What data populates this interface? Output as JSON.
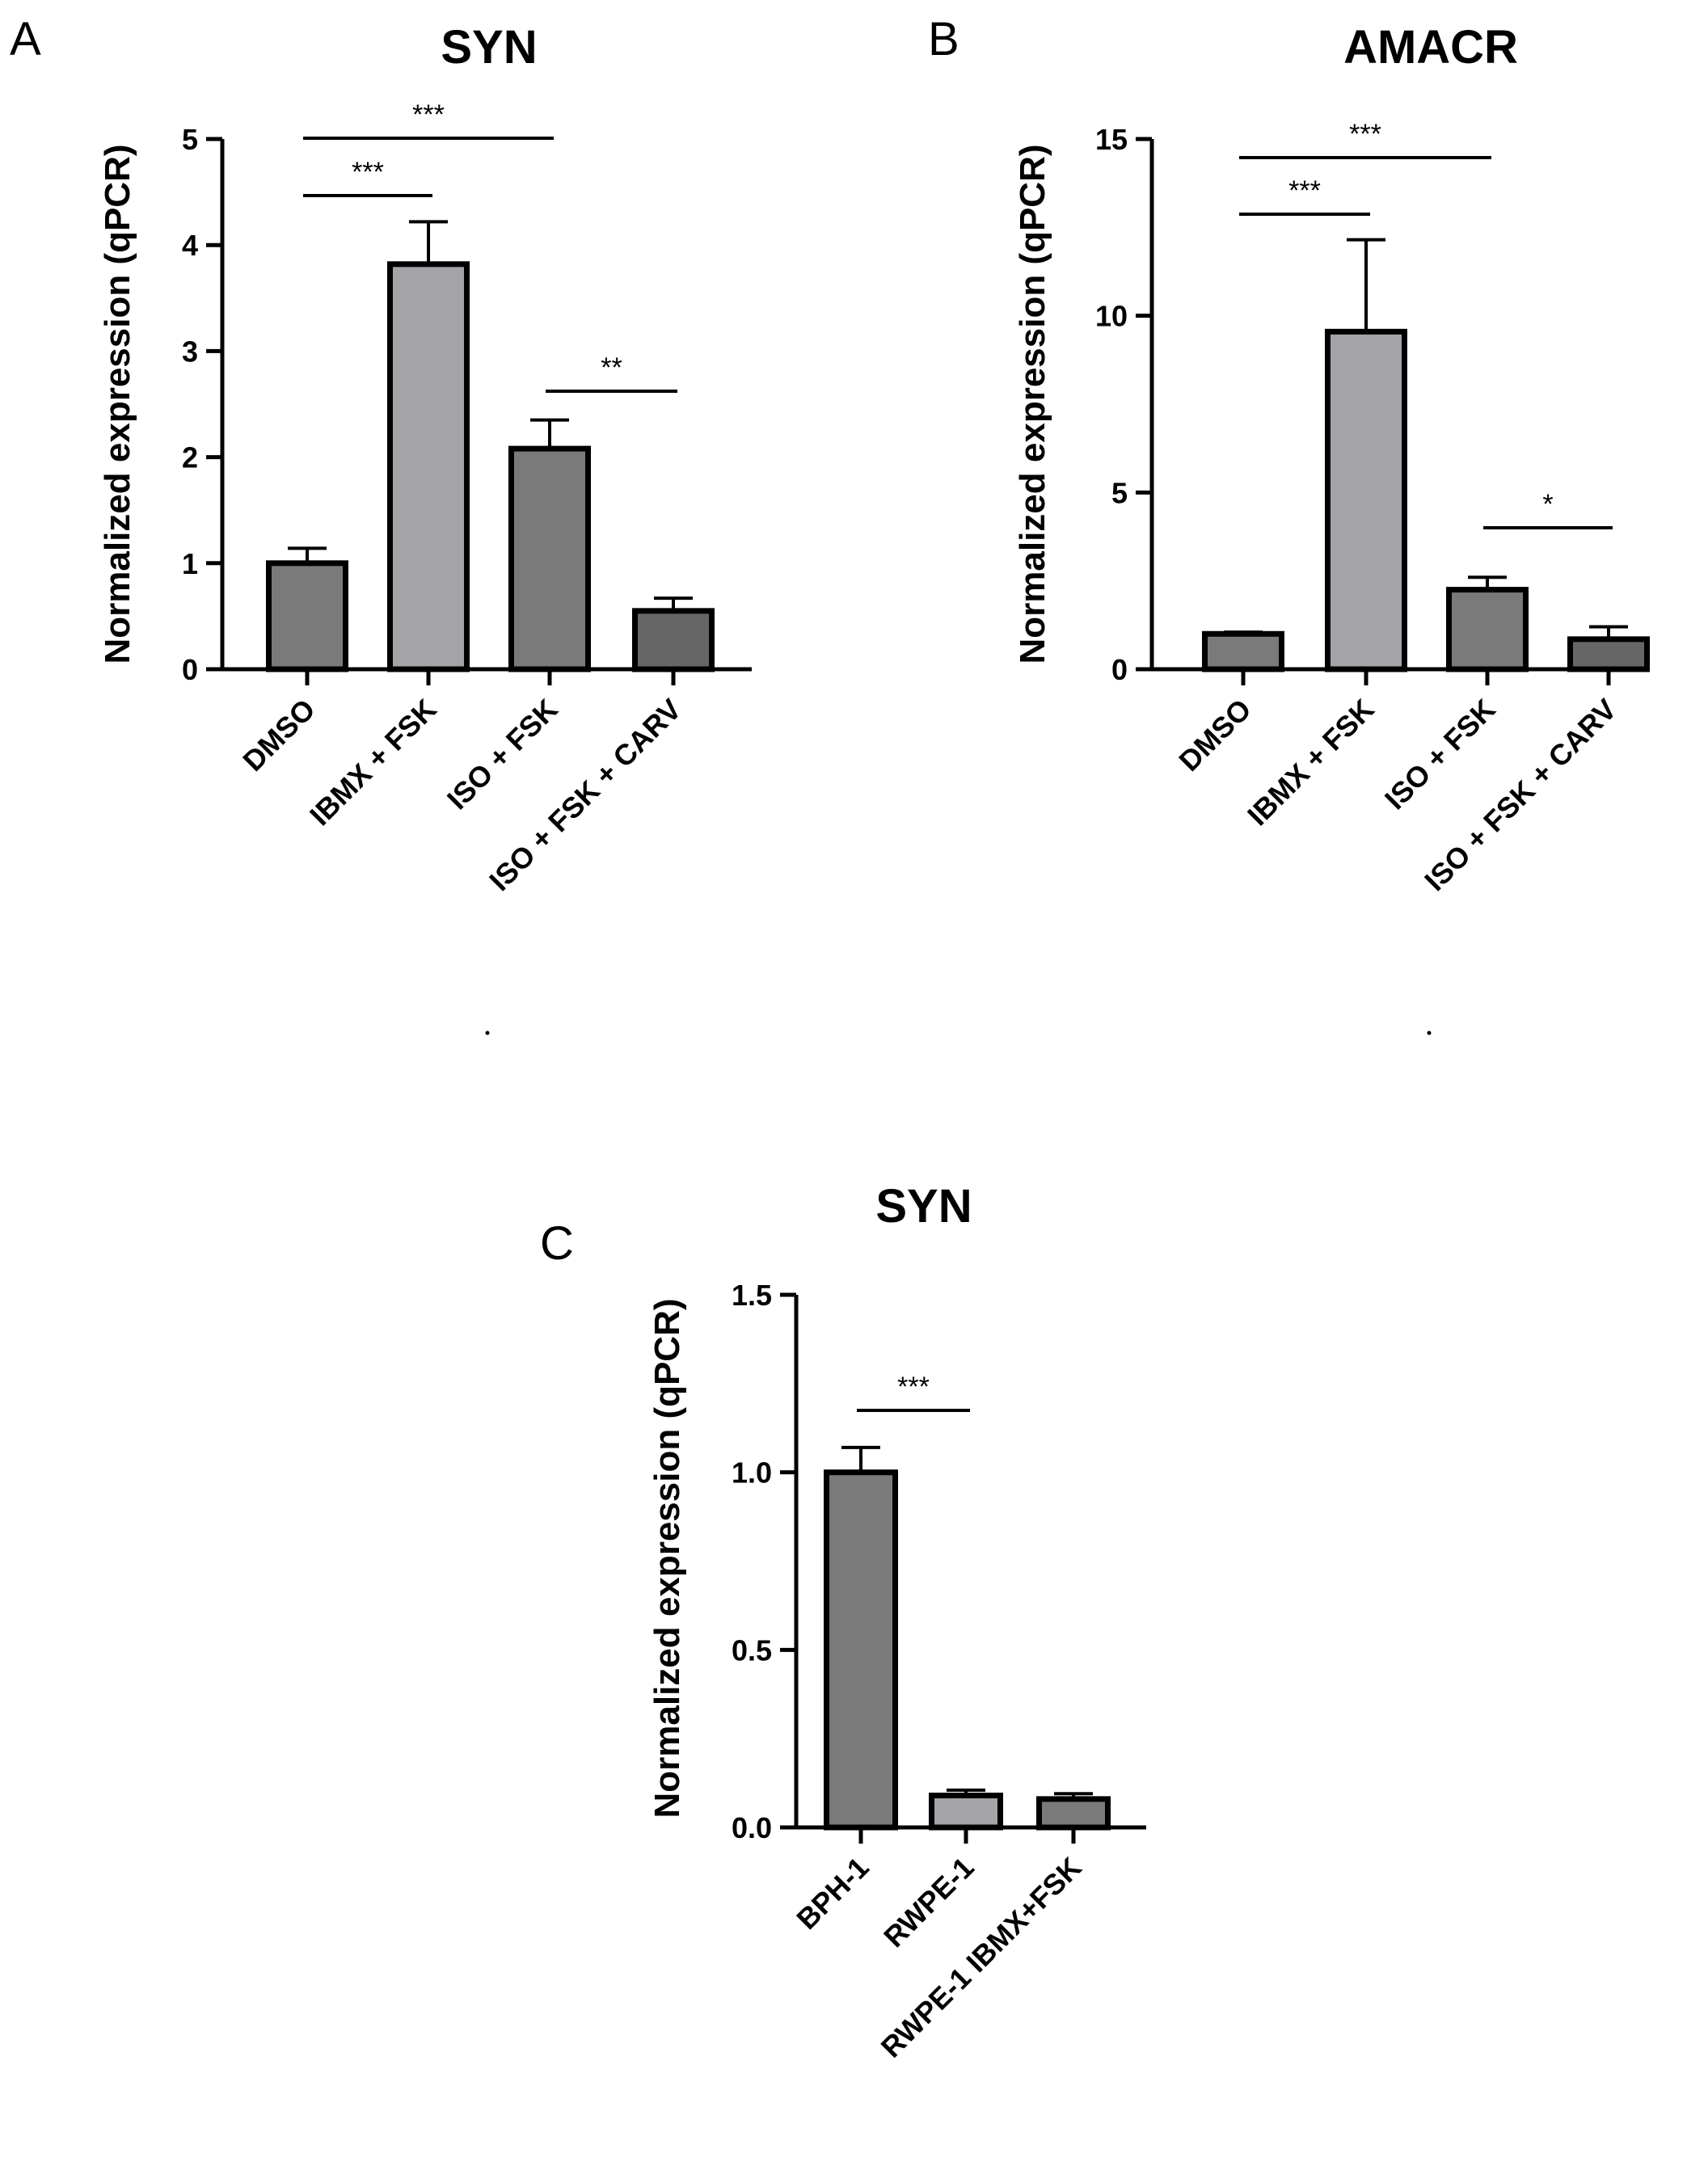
{
  "colors": {
    "bar_dark": "#7a7a7a",
    "bar_light": "#a3a3a8",
    "bar_darkest": "#666666",
    "ink": "#000000"
  },
  "chart_data": [
    {
      "panel_label": "A",
      "type": "bar",
      "title": "SYN",
      "ylabel": "Normalized expression (qPCR)",
      "ylim": [
        0,
        5
      ],
      "yticks": [
        "0",
        "1",
        "2",
        "3",
        "4",
        "5"
      ],
      "categories": [
        "DMSO",
        "IBMX + FSK",
        "ISO + FSK",
        "ISO + FSK + CARV"
      ],
      "values": [
        1.0,
        3.82,
        2.08,
        0.55
      ],
      "errors": [
        0.14,
        0.4,
        0.27,
        0.12
      ],
      "significance": [
        {
          "label": "***",
          "from": 0,
          "to": 1
        },
        {
          "label": "***",
          "from": 0,
          "to": 2
        },
        {
          "label": "**",
          "from": 2,
          "to": 3
        }
      ]
    },
    {
      "panel_label": "B",
      "type": "bar",
      "title": "AMACR",
      "ylabel": "Normalized expression (qPCR)",
      "ylim": [
        0,
        15
      ],
      "yticks": [
        "0",
        "5",
        "10",
        "15"
      ],
      "categories": [
        "DMSO",
        "IBMX + FSK",
        "ISO + FSK",
        "ISO + FSK + CARV"
      ],
      "values": [
        1.0,
        9.55,
        2.25,
        0.85
      ],
      "errors": [
        0.05,
        2.6,
        0.35,
        0.35
      ],
      "significance": [
        {
          "label": "***",
          "from": 0,
          "to": 1
        },
        {
          "label": "***",
          "from": 0,
          "to": 2
        },
        {
          "label": "*",
          "from": 2,
          "to": 3
        }
      ]
    },
    {
      "panel_label": "C",
      "type": "bar",
      "title": "SYN",
      "ylabel": "Normalized expression (qPCR)",
      "ylim": [
        0,
        1.5
      ],
      "yticks": [
        "0.0",
        "0.5",
        "1.0",
        "1.5"
      ],
      "categories": [
        "BPH-1",
        "RWPE-1",
        "RWPE-1 IBMX+FSK"
      ],
      "values": [
        1.0,
        0.09,
        0.08
      ],
      "errors": [
        0.07,
        0.015,
        0.015
      ],
      "significance": [
        {
          "label": "***",
          "from": 0,
          "to": 1
        }
      ]
    }
  ]
}
